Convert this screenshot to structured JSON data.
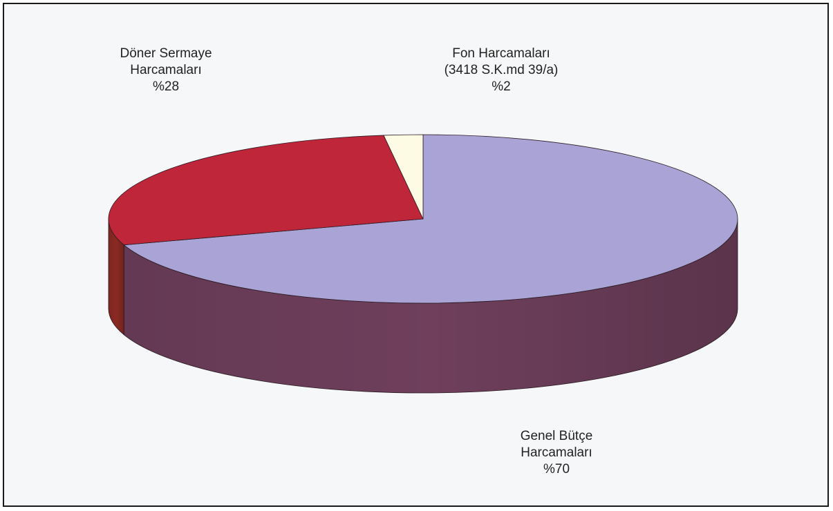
{
  "chart_data": {
    "type": "pie",
    "title": "",
    "slices": [
      {
        "key": "genel",
        "label_lines": [
          "Genel Bütçe",
          "Harcamaları",
          "%70"
        ],
        "value": 70,
        "color": "#a9a3d6",
        "side_color": "#6f3f5c"
      },
      {
        "key": "doner",
        "label_lines": [
          "Döner Sermaye",
          "Harcamaları",
          "%28"
        ],
        "value": 28,
        "color": "#c0263a",
        "side_color": "#8a2a22"
      },
      {
        "key": "fon",
        "label_lines": [
          "Fon Harcamaları",
          "(3418 S.K.md 39/a)",
          "%2"
        ],
        "value": 2,
        "color": "#fdfbe4",
        "side_color": "#e8e2c0"
      }
    ],
    "style": "3d",
    "legend": "none"
  }
}
